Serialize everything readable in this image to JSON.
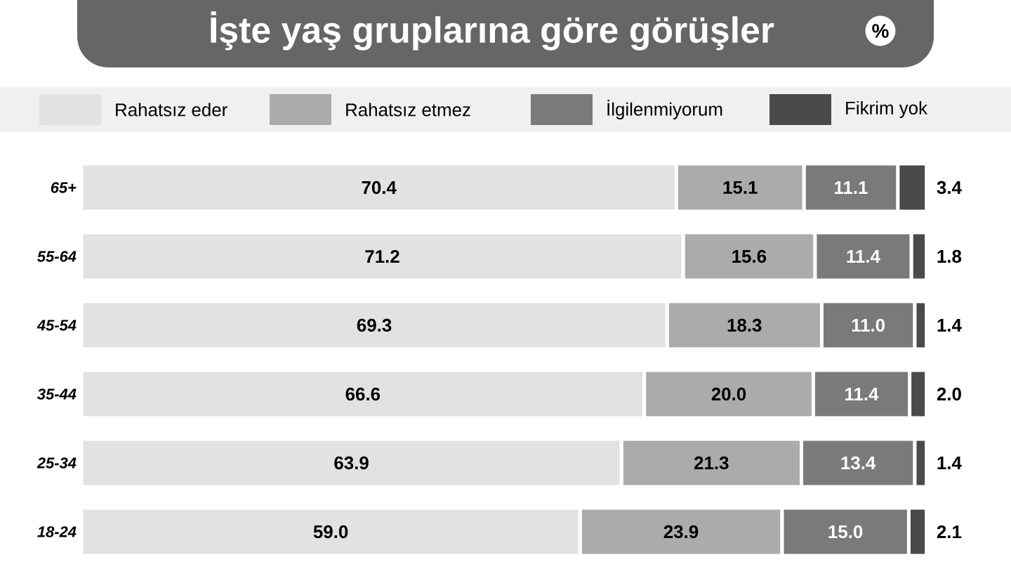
{
  "chart_data": {
    "type": "bar",
    "orientation": "horizontal",
    "stacked": true,
    "title": "İşte yaş gruplarına göre görüşler",
    "subtitle": "%",
    "legend": "top",
    "categories": [
      "65+",
      "55-64",
      "45-54",
      "35-44",
      "25-34",
      "18-24"
    ],
    "series": [
      {
        "name": "Rahatsız eder",
        "color": "#e2e2e2",
        "values": [
          70.4,
          71.2,
          69.3,
          66.6,
          63.9,
          59.0
        ],
        "value_labels": [
          "70.4",
          "71.2",
          "69.3",
          "66.6",
          "63.9",
          "59.0"
        ]
      },
      {
        "name": "Rahatsız etmez",
        "color": "#ababab",
        "values": [
          15.1,
          15.6,
          18.3,
          20.0,
          21.3,
          23.9
        ],
        "value_labels": [
          "15.1",
          "15.6",
          "18.3",
          "20.0",
          "21.3",
          "23.9"
        ]
      },
      {
        "name": "İlgilenmiyorum",
        "color": "#7a7a7a",
        "values": [
          11.1,
          11.4,
          11.0,
          11.4,
          13.4,
          15.0
        ],
        "value_labels": [
          "11.1",
          "11.4",
          "11.0",
          "11.4",
          "13.4",
          "15.0"
        ]
      },
      {
        "name": "Fikrim yok",
        "color": "#4a4a4a",
        "values": [
          3.4,
          1.8,
          1.4,
          2.0,
          1.4,
          2.1
        ],
        "value_labels": [
          "3.4",
          "1.8",
          "1.4",
          "2.0",
          "1.4",
          "2.1"
        ]
      }
    ]
  }
}
